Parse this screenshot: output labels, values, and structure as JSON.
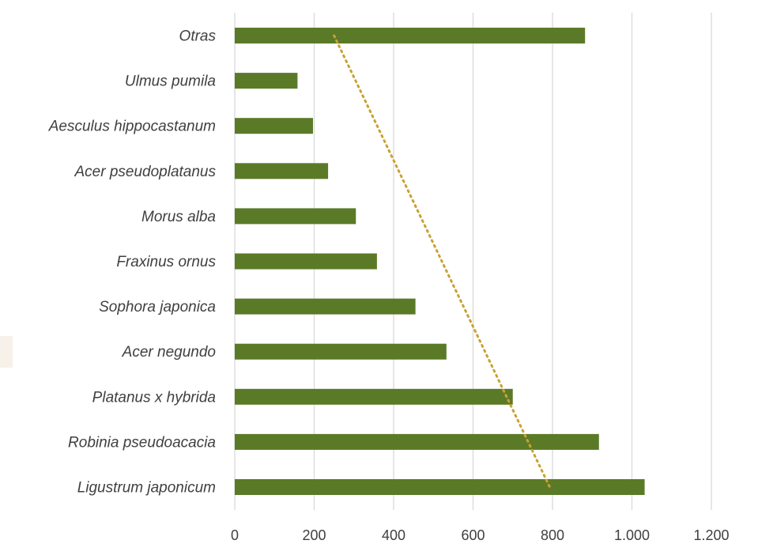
{
  "chart_data": {
    "type": "bar",
    "orientation": "horizontal",
    "categories": [
      "Otras",
      "Ulmus pumila",
      "Aesculus hippocastanum",
      "Acer pseudoplatanus",
      "Morus alba",
      "Fraxinus ornus",
      "Sophora japonica",
      "Acer negundo",
      "Platanus x hybrida",
      "Robinia pseudoacacia",
      "Ligustrum japonicum"
    ],
    "values": [
      882,
      158,
      197,
      235,
      305,
      358,
      455,
      533,
      700,
      917,
      1032
    ],
    "xlim": [
      0,
      1200
    ],
    "xticks": [
      0,
      200,
      400,
      600,
      800,
      1000,
      1200
    ],
    "xtick_labels": [
      "0",
      "200",
      "400",
      "600",
      "800",
      "1.000",
      "1.200"
    ],
    "title": "",
    "xlabel": "",
    "ylabel": "",
    "grid": "vertical",
    "legend": "none",
    "trendline": {
      "style": "dotted",
      "from": {
        "category": "Otras",
        "x": 250
      },
      "to": {
        "category": "Ligustrum japonicum",
        "x": 793
      }
    },
    "colors": {
      "bar": "#5b7a27",
      "trendline": "#c9a233",
      "grid": "#d9d9d9",
      "text": "#404040"
    }
  }
}
